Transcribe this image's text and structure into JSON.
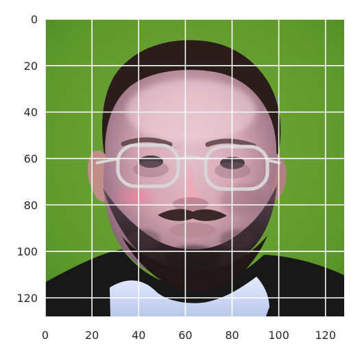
{
  "chart_data": {
    "type": "image",
    "title": "",
    "xlabel": "",
    "ylabel": "",
    "image_extent": {
      "x": [
        0,
        128
      ],
      "y": [
        0,
        128
      ]
    },
    "y_inverted": true,
    "xticks": [
      0,
      20,
      40,
      60,
      80,
      100,
      120
    ],
    "yticks": [
      0,
      20,
      40,
      60,
      80,
      100,
      120
    ],
    "grid": true,
    "grid_color": "#ffffff",
    "image_subject": "face-photo",
    "colors": {
      "background_green": "#5f9a2c",
      "skin": "#d8a8b2",
      "hair": "#2b1e1a",
      "beard": "#2d2220",
      "shirt": "#c8d4f2",
      "jacket": "#1b1b1b"
    }
  }
}
